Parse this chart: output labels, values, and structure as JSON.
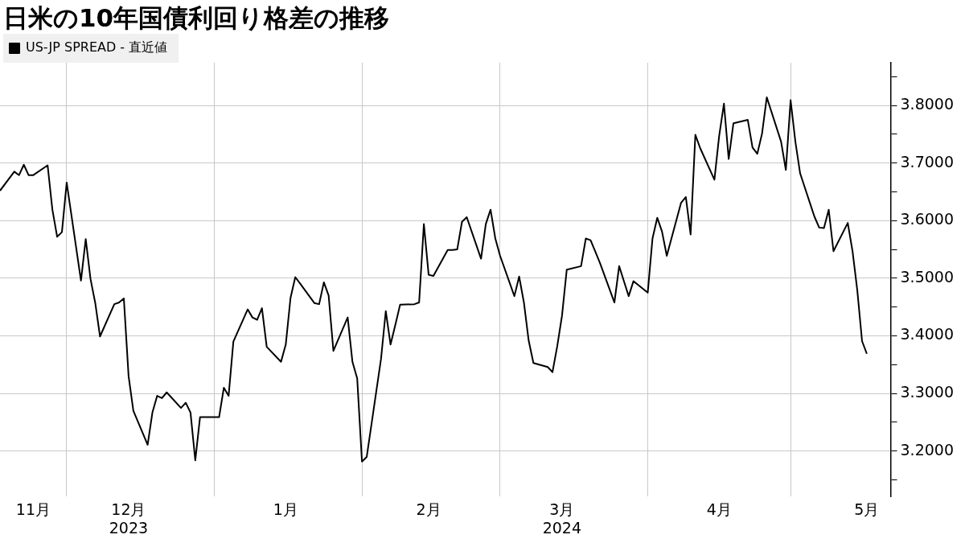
{
  "chart_data": {
    "type": "line",
    "title": "日米の10年国債利回り格差の推移",
    "x": [
      "2023-11-17",
      "2023-11-20",
      "2023-11-21",
      "2023-11-22",
      "2023-11-23",
      "2023-11-24",
      "2023-11-27",
      "2023-11-28",
      "2023-11-29",
      "2023-11-30",
      "2023-12-01",
      "2023-12-04",
      "2023-12-05",
      "2023-12-06",
      "2023-12-07",
      "2023-12-08",
      "2023-12-11",
      "2023-12-12",
      "2023-12-13",
      "2023-12-14",
      "2023-12-15",
      "2023-12-18",
      "2023-12-19",
      "2023-12-20",
      "2023-12-21",
      "2023-12-22",
      "2023-12-25",
      "2023-12-26",
      "2023-12-27",
      "2023-12-28",
      "2023-12-29",
      "2024-01-01",
      "2024-01-02",
      "2024-01-03",
      "2024-01-04",
      "2024-01-05",
      "2024-01-08",
      "2024-01-09",
      "2024-01-10",
      "2024-01-11",
      "2024-01-12",
      "2024-01-15",
      "2024-01-16",
      "2024-01-17",
      "2024-01-18",
      "2024-01-19",
      "2024-01-22",
      "2024-01-23",
      "2024-01-24",
      "2024-01-25",
      "2024-01-26",
      "2024-01-29",
      "2024-01-30",
      "2024-01-31",
      "2024-02-01",
      "2024-02-02",
      "2024-02-05",
      "2024-02-06",
      "2024-02-07",
      "2024-02-08",
      "2024-02-09",
      "2024-02-12",
      "2024-02-13",
      "2024-02-14",
      "2024-02-15",
      "2024-02-16",
      "2024-02-19",
      "2024-02-20",
      "2024-02-21",
      "2024-02-22",
      "2024-02-23",
      "2024-02-26",
      "2024-02-27",
      "2024-02-28",
      "2024-02-29",
      "2024-03-01",
      "2024-03-04",
      "2024-03-05",
      "2024-03-06",
      "2024-03-07",
      "2024-03-08",
      "2024-03-11",
      "2024-03-12",
      "2024-03-13",
      "2024-03-14",
      "2024-03-15",
      "2024-03-18",
      "2024-03-19",
      "2024-03-20",
      "2024-03-21",
      "2024-03-22",
      "2024-03-25",
      "2024-03-26",
      "2024-03-27",
      "2024-03-28",
      "2024-03-29",
      "2024-04-01",
      "2024-04-02",
      "2024-04-03",
      "2024-04-04",
      "2024-04-05",
      "2024-04-08",
      "2024-04-09",
      "2024-04-10",
      "2024-04-11",
      "2024-04-12",
      "2024-04-15",
      "2024-04-16",
      "2024-04-17",
      "2024-04-18",
      "2024-04-19",
      "2024-04-22",
      "2024-04-23",
      "2024-04-24",
      "2024-04-25",
      "2024-04-26",
      "2024-04-29",
      "2024-04-30",
      "2024-05-01",
      "2024-05-02",
      "2024-05-03",
      "2024-05-06",
      "2024-05-07",
      "2024-05-08",
      "2024-05-09",
      "2024-05-10",
      "2024-05-13",
      "2024-05-14",
      "2024-05-15",
      "2024-05-16",
      "2024-05-17"
    ],
    "series": [
      {
        "name": "US-JP SPREAD - 直近値",
        "color": "#000000",
        "values": [
          3.652,
          3.685,
          3.679,
          3.697,
          3.679,
          3.679,
          3.696,
          3.619,
          3.572,
          3.58,
          3.666,
          3.496,
          3.568,
          3.499,
          3.457,
          3.399,
          3.455,
          3.458,
          3.465,
          3.33,
          3.27,
          3.211,
          3.267,
          3.296,
          3.292,
          3.302,
          3.275,
          3.284,
          3.267,
          3.184,
          3.259,
          3.259,
          3.259,
          3.31,
          3.296,
          3.39,
          3.446,
          3.432,
          3.428,
          3.448,
          3.381,
          3.355,
          3.385,
          3.466,
          3.502,
          3.491,
          3.457,
          3.455,
          3.493,
          3.47,
          3.374,
          3.432,
          3.355,
          3.326,
          3.182,
          3.19,
          3.36,
          3.443,
          3.385,
          3.419,
          3.454,
          3.455,
          3.458,
          3.594,
          3.506,
          3.504,
          3.549,
          3.549,
          3.55,
          3.598,
          3.606,
          3.534,
          3.594,
          3.619,
          3.569,
          3.539,
          3.469,
          3.503,
          3.458,
          3.392,
          3.353,
          3.346,
          3.337,
          3.382,
          3.435,
          3.515,
          3.521,
          3.569,
          3.566,
          3.546,
          3.526,
          3.458,
          3.521,
          3.495,
          3.469,
          3.495,
          3.475,
          3.569,
          3.605,
          3.581,
          3.539,
          3.631,
          3.641,
          3.576,
          3.749,
          3.726,
          3.671,
          3.747,
          3.803,
          3.707,
          3.769,
          3.775,
          3.727,
          3.716,
          3.751,
          3.814,
          3.737,
          3.688,
          3.809,
          3.737,
          3.682,
          3.607,
          3.588,
          3.587,
          3.619,
          3.547,
          3.596,
          3.547,
          3.479,
          3.391,
          3.369
        ]
      }
    ],
    "xlim": [
      "2023-11-17",
      "2024-05-22"
    ],
    "xticks": [
      {
        "value": "2023-11-24",
        "label": "11月"
      },
      {
        "value": "2023-12-01",
        "label": null
      },
      {
        "value": "2023-12-14",
        "label": "12月\n2023"
      },
      {
        "value": "2024-01-01",
        "label": null
      },
      {
        "value": "2024-01-16",
        "label": "1月"
      },
      {
        "value": "2024-02-01",
        "label": null
      },
      {
        "value": "2024-02-15",
        "label": "2月"
      },
      {
        "value": "2024-03-01",
        "label": null
      },
      {
        "value": "2024-03-14",
        "label": "3月\n2024"
      },
      {
        "value": "2024-04-01",
        "label": null
      },
      {
        "value": "2024-04-16",
        "label": "4月"
      },
      {
        "value": "2024-05-01",
        "label": null
      },
      {
        "value": "2024-05-17",
        "label": "5月"
      }
    ],
    "ylim": [
      3.121,
      3.874
    ],
    "yticks": [
      {
        "value": 3.15,
        "label": null
      },
      {
        "value": 3.2,
        "label": "3.2000"
      },
      {
        "value": 3.25,
        "label": null
      },
      {
        "value": 3.3,
        "label": "3.3000"
      },
      {
        "value": 3.35,
        "label": null
      },
      {
        "value": 3.4,
        "label": "3.4000"
      },
      {
        "value": 3.45,
        "label": null
      },
      {
        "value": 3.5,
        "label": "3.5000"
      },
      {
        "value": 3.55,
        "label": null
      },
      {
        "value": 3.6,
        "label": "3.6000"
      },
      {
        "value": 3.65,
        "label": null
      },
      {
        "value": 3.7,
        "label": "3.7000"
      },
      {
        "value": 3.75,
        "label": null
      },
      {
        "value": 3.8,
        "label": "3.8000"
      },
      {
        "value": 3.85,
        "label": null
      }
    ],
    "grid": true,
    "legend": "top left",
    "marker": "none",
    "line_style": "solid"
  }
}
